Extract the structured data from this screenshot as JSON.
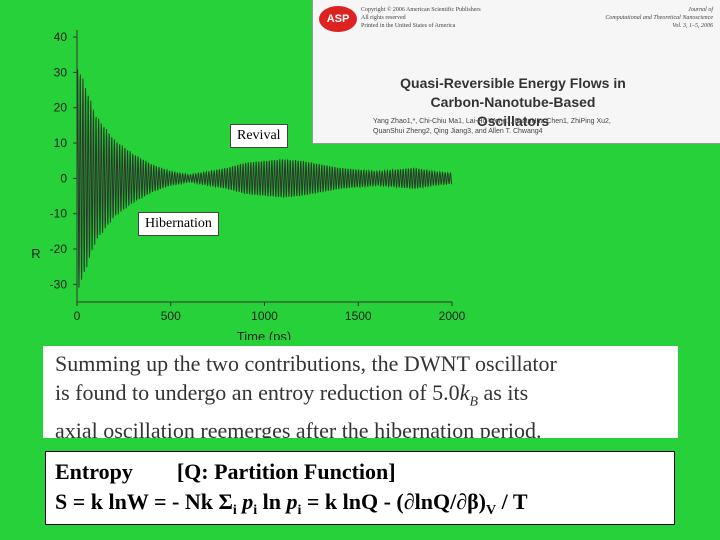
{
  "chart_data": {
    "type": "line",
    "xlabel": "Time (ps)",
    "ylabel": "R",
    "xlim": [
      0,
      2000
    ],
    "ylim": [
      -35,
      42
    ],
    "xticks": [
      0,
      500,
      1000,
      1500,
      2000
    ],
    "yticks": [
      40,
      30,
      20,
      10,
      0,
      -10,
      -20,
      -30
    ],
    "series": [
      {
        "envelope_t": [
          0,
          20,
          100,
          200,
          300,
          400,
          500,
          600,
          700,
          800,
          900,
          1000,
          1100,
          1200,
          1300,
          1400,
          1500,
          1600,
          1700,
          1800,
          1900,
          2000
        ],
        "envelope_amp": [
          32,
          30,
          18,
          11,
          7,
          4,
          2,
          1,
          2,
          3,
          4.5,
          5,
          5.5,
          5,
          4,
          3,
          2.5,
          2,
          2.5,
          3,
          2,
          1.5
        ],
        "period_ps": 14
      }
    ],
    "annotations": [
      {
        "id": "revival",
        "text": "Revival"
      },
      {
        "id": "hibernation",
        "text": "Hibernation"
      }
    ]
  },
  "callouts": {
    "revival": "Revival",
    "hibernation": "Hibernation"
  },
  "paper": {
    "logo": "ASP",
    "copyright_lines": [
      "Copyright © 2006 American Scientific Publishers",
      "All rights reserved",
      "Printed in the United States of America"
    ],
    "journal_lines": [
      "Journal of",
      "Computational and Theoretical Nanoscience",
      "Vol. 3, 1–5, 2006"
    ],
    "title_line1": "Quasi-Reversible Energy Flows in",
    "title_line2": "Carbon-Nanotube-Based Oscillators",
    "authors_line1": "Yang Zhao1,*, Chi-Chiu Ma1, Lai-Ho Wong1, GuanHua Chen1, ZhiPing Xu2,",
    "authors_line2": "QuanShui Zheng2, Qing Jiang3, and Allen T. Chwang4"
  },
  "excerpt": {
    "line1": "Summing up the two contributions, the DWNT oscillator",
    "line2_pre": "is found to undergo an entroy reduction of 5.0",
    "line2_k": "k",
    "line2_sub": "B",
    "line2_post": " as its",
    "line3": "axial oscillation reemerges after the hibernation period."
  },
  "formula": {
    "line1_a": "Entropy",
    "line1_b": "[Q: Partition Function]",
    "l2_a": "S = k ln",
    "l2_b": "W = - Nk ",
    "l2_sigma": "Σ",
    "l2_sub_i1": "i",
    "l2_p1": "p",
    "l2_sub_i2": "i",
    "l2_c": " ln ",
    "l2_p2": "p",
    "l2_sub_i3": "i",
    "l2_d": " = k lnQ  - (∂lnQ/∂β)",
    "l2_sub_v": "V",
    "l2_e": " / T"
  },
  "colors": {
    "background": "#27d13a",
    "plot_line": "#2a3a2a"
  }
}
